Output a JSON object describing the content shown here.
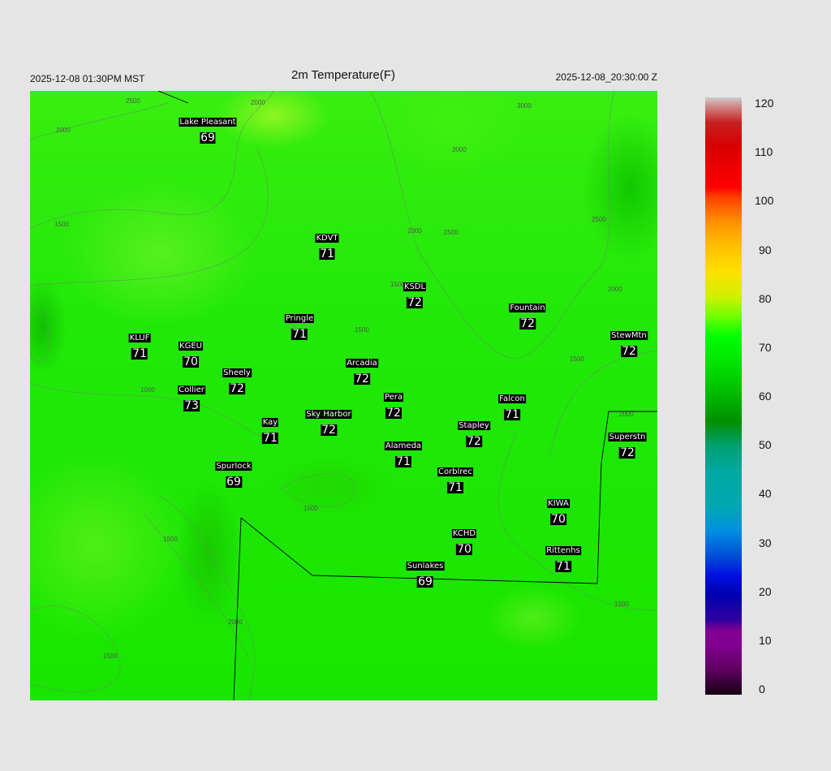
{
  "header": {
    "local_time": "2025-12-08 01:30PM MST",
    "title": "2m Temperature(F)",
    "utc_time": "2025-12-08_20:30:00 Z"
  },
  "stations": [
    {
      "name": "Lake Pleasant",
      "value": "69"
    },
    {
      "name": "KDVT",
      "value": "71"
    },
    {
      "name": "KSDL",
      "value": "72"
    },
    {
      "name": "Fountain",
      "value": "72"
    },
    {
      "name": "Pringle",
      "value": "71"
    },
    {
      "name": "KLUF",
      "value": "71"
    },
    {
      "name": "KGEU",
      "value": "70"
    },
    {
      "name": "StewMtn",
      "value": "72"
    },
    {
      "name": "Arcadia",
      "value": "72"
    },
    {
      "name": "Sheely",
      "value": "72"
    },
    {
      "name": "Collier",
      "value": "73"
    },
    {
      "name": "Pera",
      "value": "72"
    },
    {
      "name": "Falcon",
      "value": "71"
    },
    {
      "name": "Sky Harbor",
      "value": "72"
    },
    {
      "name": "Kay",
      "value": "71"
    },
    {
      "name": "Stapley",
      "value": "72"
    },
    {
      "name": "Superstn",
      "value": "72"
    },
    {
      "name": "Alameda",
      "value": "71"
    },
    {
      "name": "Spurlock",
      "value": "69"
    },
    {
      "name": "Corblrec",
      "value": "71"
    },
    {
      "name": "KIWA",
      "value": "70"
    },
    {
      "name": "KCHD",
      "value": "70"
    },
    {
      "name": "Rittenhs",
      "value": "71"
    },
    {
      "name": "Sunlakes",
      "value": "69"
    }
  ],
  "contour_labels": [
    "2500",
    "2000",
    "2000",
    "3000",
    "3000",
    "1500",
    "2000",
    "2500",
    "1500",
    "1500",
    "2500",
    "2000",
    "1500",
    "1000",
    "2000",
    "1500",
    "1500",
    "2000",
    "1500",
    "1500"
  ],
  "colorbar": {
    "ticks": [
      "120",
      "110",
      "100",
      "90",
      "80",
      "70",
      "60",
      "50",
      "40",
      "30",
      "20",
      "10",
      "0"
    ],
    "colors": [
      {
        "v": 0,
        "c": "#140014"
      },
      {
        "v": 5,
        "c": "#600060"
      },
      {
        "v": 10,
        "c": "#800090"
      },
      {
        "v": 13,
        "c": "#800090"
      },
      {
        "v": 15,
        "c": "#3000a0"
      },
      {
        "v": 20,
        "c": "#0000b0"
      },
      {
        "v": 24,
        "c": "#0010e0"
      },
      {
        "v": 28,
        "c": "#0050d8"
      },
      {
        "v": 33,
        "c": "#0090e0"
      },
      {
        "v": 38,
        "c": "#00a8b0"
      },
      {
        "v": 45,
        "c": "#00a8a0"
      },
      {
        "v": 50,
        "c": "#00a070"
      },
      {
        "v": 55,
        "c": "#009000"
      },
      {
        "v": 60,
        "c": "#00b800"
      },
      {
        "v": 66,
        "c": "#00e000"
      },
      {
        "v": 72,
        "c": "#00ff00"
      },
      {
        "v": 76,
        "c": "#70ff00"
      },
      {
        "v": 80,
        "c": "#d0f000"
      },
      {
        "v": 85,
        "c": "#ffe000"
      },
      {
        "v": 90,
        "c": "#ffc000"
      },
      {
        "v": 95,
        "c": "#ff9000"
      },
      {
        "v": 100,
        "c": "#ff4000"
      },
      {
        "v": 102,
        "c": "#ff0000"
      },
      {
        "v": 110,
        "c": "#d80000"
      },
      {
        "v": 115,
        "c": "#c82020"
      },
      {
        "v": 118,
        "c": "#d08080"
      },
      {
        "v": 120,
        "c": "#cccccc"
      }
    ]
  }
}
